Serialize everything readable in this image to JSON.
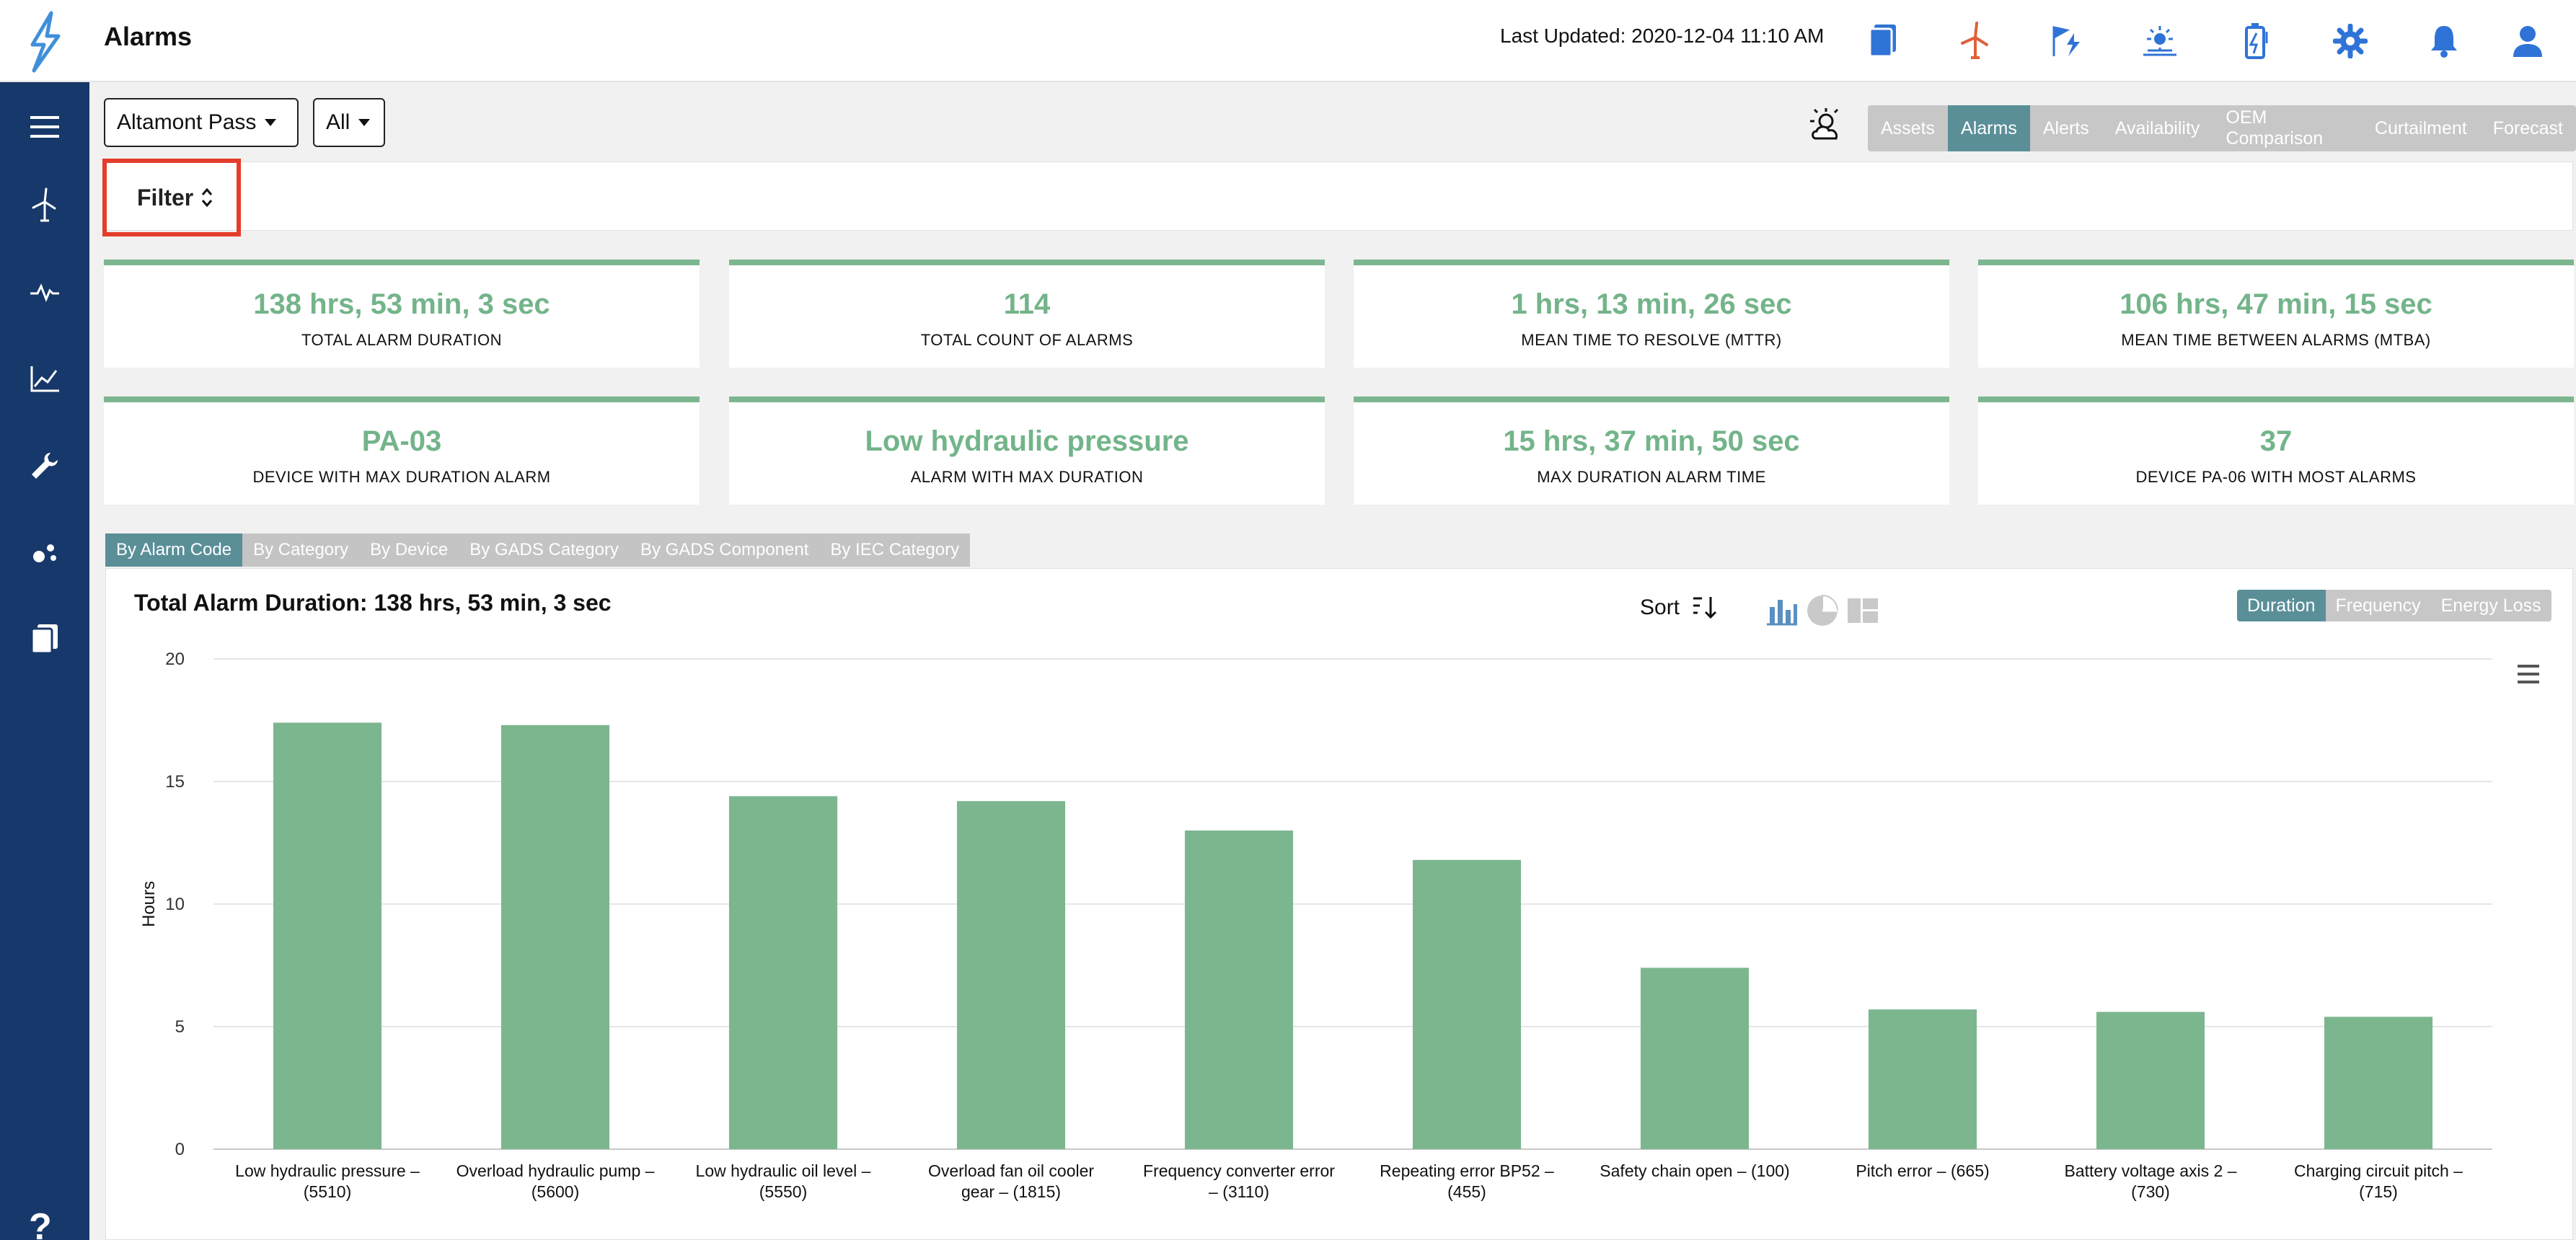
{
  "header": {
    "title": "Alarms",
    "last_updated": "Last Updated: 2020-12-04 11:10 AM"
  },
  "header_icons": [
    "documents-icon",
    "wind-turbine-icon",
    "power-flag-icon",
    "solar-icon",
    "battery-icon",
    "settings-gear-icon",
    "notifications-bell-icon",
    "user-account-icon"
  ],
  "sidebar_icons": [
    "hamburger-menu-icon",
    "wind-turbine-icon",
    "pulse-icon",
    "line-chart-icon",
    "wrench-icon",
    "scatter-icon",
    "reports-icon"
  ],
  "sidebar_bottom_glyph": "?",
  "selectors": {
    "site": "Altamont Pass",
    "device": "All"
  },
  "view_tabs": [
    {
      "label": "Assets",
      "active": false
    },
    {
      "label": "Alarms",
      "active": true
    },
    {
      "label": "Alerts",
      "active": false
    },
    {
      "label": "Availability",
      "active": false
    },
    {
      "label": "OEM Comparison",
      "active": false
    },
    {
      "label": "Curtailment",
      "active": false
    },
    {
      "label": "Forecast",
      "active": false
    }
  ],
  "filter": {
    "label": "Filter"
  },
  "stats": [
    {
      "value": "138 hrs, 53 min, 3 sec",
      "label": "TOTAL ALARM DURATION"
    },
    {
      "value": "114",
      "label": "TOTAL COUNT OF ALARMS"
    },
    {
      "value": "1 hrs, 13 min, 26 sec",
      "label": "MEAN TIME TO RESOLVE (MTTR)"
    },
    {
      "value": "106 hrs, 47 min, 15 sec",
      "label": "MEAN TIME BETWEEN ALARMS (MTBA)"
    },
    {
      "value": "PA-03",
      "label": "DEVICE WITH MAX DURATION ALARM"
    },
    {
      "value": "Low hydraulic pressure",
      "label": "ALARM WITH MAX DURATION"
    },
    {
      "value": "15 hrs, 37 min, 50 sec",
      "label": "MAX DURATION ALARM TIME"
    },
    {
      "value": "37",
      "label": "DEVICE PA-06 WITH MOST ALARMS"
    }
  ],
  "group_tabs": [
    {
      "label": "By Alarm Code",
      "active": true
    },
    {
      "label": "By Category",
      "active": false
    },
    {
      "label": "By Device",
      "active": false
    },
    {
      "label": "By GADS Category",
      "active": false
    },
    {
      "label": "By GADS Component",
      "active": false
    },
    {
      "label": "By IEC Category",
      "active": false
    }
  ],
  "chart_panel": {
    "title": "Total Alarm Duration: 138 hrs, 53 min, 3 sec",
    "sort_label": "Sort",
    "metric_tabs": [
      {
        "label": "Duration",
        "active": true
      },
      {
        "label": "Frequency",
        "active": false
      },
      {
        "label": "Energy Loss",
        "active": false
      }
    ]
  },
  "colors": {
    "sidebar": "#17386a",
    "accent": "#5a8f98",
    "bar": "#7cb68f",
    "stat_value": "#73b48a",
    "highlight": "#e53d2b",
    "icon_blue": "#2f73d6",
    "icon_orange": "#e0603a"
  },
  "chart_data": {
    "type": "bar",
    "title": "",
    "xlabel": "",
    "ylabel": "Hours",
    "ylim": [
      0,
      20
    ],
    "yticks": [
      0,
      5,
      10,
      15,
      20
    ],
    "grid": true,
    "legend": "none",
    "categories": [
      [
        "Low hydraulic pressure –",
        "(5510)"
      ],
      [
        "Overload hydraulic pump –",
        "(5600)"
      ],
      [
        "Low hydraulic oil level –",
        "(5550)"
      ],
      [
        "Overload fan oil cooler",
        "gear – (1815)"
      ],
      [
        "Frequency converter error",
        "– (3110)"
      ],
      [
        "Repeating error BP52 –",
        "(455)"
      ],
      [
        "Safety chain open – (100)"
      ],
      [
        "Pitch error – (665)"
      ],
      [
        "Battery voltage axis 2 –",
        "(730)"
      ],
      [
        "Charging circuit pitch –",
        "(715)"
      ]
    ],
    "values": [
      17.4,
      17.3,
      14.4,
      14.2,
      13.0,
      11.8,
      7.4,
      5.7,
      5.6,
      5.4
    ]
  }
}
